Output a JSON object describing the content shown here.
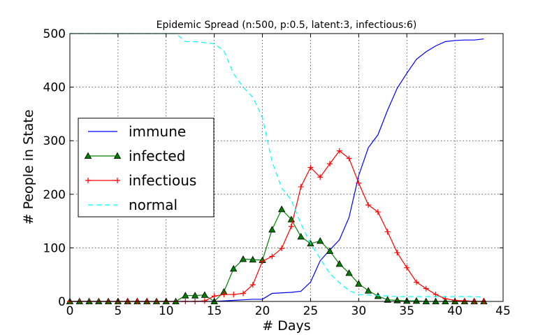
{
  "chart_data": {
    "type": "line",
    "title": "Epidemic Spread (n:500, p:0.5, latent:3, infectious:6)",
    "xlabel": "# Days",
    "ylabel": "# People in State",
    "xlim": [
      0,
      45
    ],
    "ylim": [
      0,
      500
    ],
    "xticks": [
      0,
      5,
      10,
      15,
      20,
      25,
      30,
      35,
      40,
      45
    ],
    "yticks": [
      0,
      100,
      200,
      300,
      400,
      500
    ],
    "grid": true,
    "legend_position": "center-left",
    "x": [
      0,
      1,
      2,
      3,
      4,
      5,
      6,
      7,
      8,
      9,
      10,
      11,
      12,
      13,
      14,
      15,
      16,
      17,
      18,
      19,
      20,
      21,
      22,
      23,
      24,
      25,
      26,
      27,
      28,
      29,
      30,
      31,
      32,
      33,
      34,
      35,
      36,
      37,
      38,
      39,
      40,
      41,
      42,
      43
    ],
    "series": [
      {
        "name": "immune",
        "color": "#0000ff",
        "line_style": "solid",
        "marker": "none",
        "values": [
          0,
          0,
          0,
          0,
          0,
          0,
          0,
          0,
          0,
          0,
          0,
          0,
          0,
          0,
          0,
          0,
          1,
          2,
          3,
          4,
          4,
          15,
          16,
          17,
          19,
          36,
          76,
          96,
          115,
          157,
          235,
          287,
          311,
          357,
          398,
          426,
          452,
          466,
          477,
          485,
          487,
          488,
          488,
          490
        ]
      },
      {
        "name": "infected",
        "color": "#008000",
        "line_style": "solid",
        "marker": "triangle",
        "values": [
          0,
          0,
          0,
          0,
          0,
          0,
          0,
          0,
          0,
          0,
          0,
          0,
          11,
          11,
          12,
          0,
          18,
          61,
          79,
          78,
          77,
          134,
          172,
          153,
          121,
          108,
          113,
          94,
          70,
          53,
          33,
          20,
          10,
          3,
          2,
          1,
          1,
          0,
          0,
          0,
          0,
          0,
          0,
          0
        ]
      },
      {
        "name": "infectious",
        "color": "#ff0000",
        "line_style": "solid",
        "marker": "plus",
        "values": [
          0,
          0,
          0,
          0,
          0,
          0,
          0,
          0,
          0,
          0,
          0,
          0,
          0,
          0,
          1,
          10,
          13,
          13,
          15,
          31,
          75,
          84,
          99,
          140,
          214,
          250,
          232,
          257,
          281,
          267,
          221,
          180,
          167,
          130,
          91,
          63,
          36,
          24,
          13,
          5,
          2,
          1,
          0,
          0
        ]
      },
      {
        "name": "normal",
        "color": "#00ffff",
        "line_style": "dashed",
        "marker": "none",
        "values": [
          500,
          500,
          500,
          500,
          500,
          500,
          500,
          500,
          500,
          500,
          500,
          500,
          485,
          485,
          483,
          481,
          468,
          425,
          400,
          381,
          343,
          261,
          212,
          189,
          145,
          108,
          80,
          52,
          35,
          20,
          13,
          12,
          11,
          10,
          9,
          9,
          9,
          9,
          9,
          9,
          9,
          9,
          9,
          8
        ]
      }
    ]
  }
}
